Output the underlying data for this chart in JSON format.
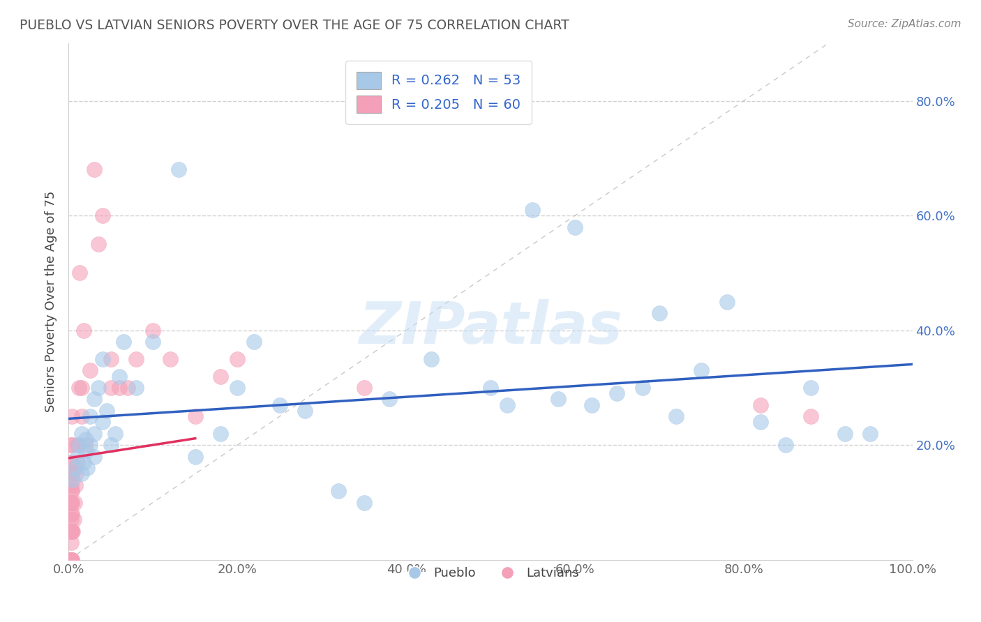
{
  "title": "PUEBLO VS LATVIAN SENIORS POVERTY OVER THE AGE OF 75 CORRELATION CHART",
  "source": "Source: ZipAtlas.com",
  "ylabel": "Seniors Poverty Over the Age of 75",
  "xlim": [
    0.0,
    1.0
  ],
  "ylim": [
    0.0,
    0.9
  ],
  "xticks": [
    0.0,
    0.2,
    0.4,
    0.6,
    0.8,
    1.0
  ],
  "xticklabels": [
    "0.0%",
    "20.0%",
    "40.0%",
    "60.0%",
    "80.0%",
    "100.0%"
  ],
  "ytick_positions": [
    0.2,
    0.4,
    0.6,
    0.8
  ],
  "yticklabels_right": [
    "20.0%",
    "40.0%",
    "60.0%",
    "80.0%"
  ],
  "pueblo_color": "#a8c8e8",
  "latvian_color": "#f4a0b8",
  "pueblo_line_color": "#3060c0",
  "latvian_line_color": "#e03060",
  "legend_pueblo": "R = 0.262   N = 53",
  "legend_latvian": "R = 0.205   N = 60",
  "watermark": "ZIPatlas",
  "pueblo_x": [
    0.005,
    0.008,
    0.01,
    0.012,
    0.015,
    0.015,
    0.018,
    0.02,
    0.02,
    0.022,
    0.025,
    0.025,
    0.03,
    0.03,
    0.03,
    0.035,
    0.04,
    0.04,
    0.045,
    0.05,
    0.055,
    0.06,
    0.065,
    0.08,
    0.1,
    0.13,
    0.15,
    0.18,
    0.2,
    0.22,
    0.25,
    0.28,
    0.32,
    0.35,
    0.38,
    0.43,
    0.5,
    0.52,
    0.55,
    0.58,
    0.6,
    0.62,
    0.65,
    0.68,
    0.7,
    0.72,
    0.75,
    0.78,
    0.82,
    0.85,
    0.88,
    0.92,
    0.95
  ],
  "pueblo_y": [
    0.14,
    0.16,
    0.18,
    0.2,
    0.15,
    0.22,
    0.17,
    0.19,
    0.21,
    0.16,
    0.2,
    0.25,
    0.18,
    0.22,
    0.28,
    0.3,
    0.24,
    0.35,
    0.26,
    0.2,
    0.22,
    0.32,
    0.38,
    0.3,
    0.38,
    0.68,
    0.18,
    0.22,
    0.3,
    0.38,
    0.27,
    0.26,
    0.12,
    0.1,
    0.28,
    0.35,
    0.3,
    0.27,
    0.61,
    0.28,
    0.58,
    0.27,
    0.29,
    0.3,
    0.43,
    0.25,
    0.33,
    0.45,
    0.24,
    0.2,
    0.3,
    0.22,
    0.22
  ],
  "latvian_x": [
    0.003,
    0.003,
    0.003,
    0.003,
    0.003,
    0.003,
    0.003,
    0.003,
    0.003,
    0.003,
    0.003,
    0.003,
    0.003,
    0.003,
    0.003,
    0.003,
    0.003,
    0.003,
    0.003,
    0.003,
    0.004,
    0.004,
    0.004,
    0.004,
    0.004,
    0.004,
    0.004,
    0.004,
    0.004,
    0.004,
    0.005,
    0.006,
    0.007,
    0.008,
    0.009,
    0.01,
    0.01,
    0.012,
    0.013,
    0.015,
    0.015,
    0.018,
    0.02,
    0.025,
    0.03,
    0.035,
    0.04,
    0.05,
    0.05,
    0.06,
    0.07,
    0.08,
    0.1,
    0.12,
    0.15,
    0.18,
    0.2,
    0.35,
    0.82,
    0.88
  ],
  "latvian_y": [
    0.0,
    0.0,
    0.0,
    0.0,
    0.0,
    0.0,
    0.0,
    0.0,
    0.03,
    0.05,
    0.05,
    0.07,
    0.08,
    0.1,
    0.1,
    0.12,
    0.13,
    0.15,
    0.17,
    0.2,
    0.0,
    0.0,
    0.05,
    0.08,
    0.1,
    0.12,
    0.15,
    0.17,
    0.2,
    0.25,
    0.05,
    0.07,
    0.1,
    0.13,
    0.15,
    0.17,
    0.2,
    0.3,
    0.5,
    0.25,
    0.3,
    0.4,
    0.2,
    0.33,
    0.68,
    0.55,
    0.6,
    0.3,
    0.35,
    0.3,
    0.3,
    0.35,
    0.4,
    0.35,
    0.25,
    0.32,
    0.35,
    0.3,
    0.27,
    0.25
  ]
}
